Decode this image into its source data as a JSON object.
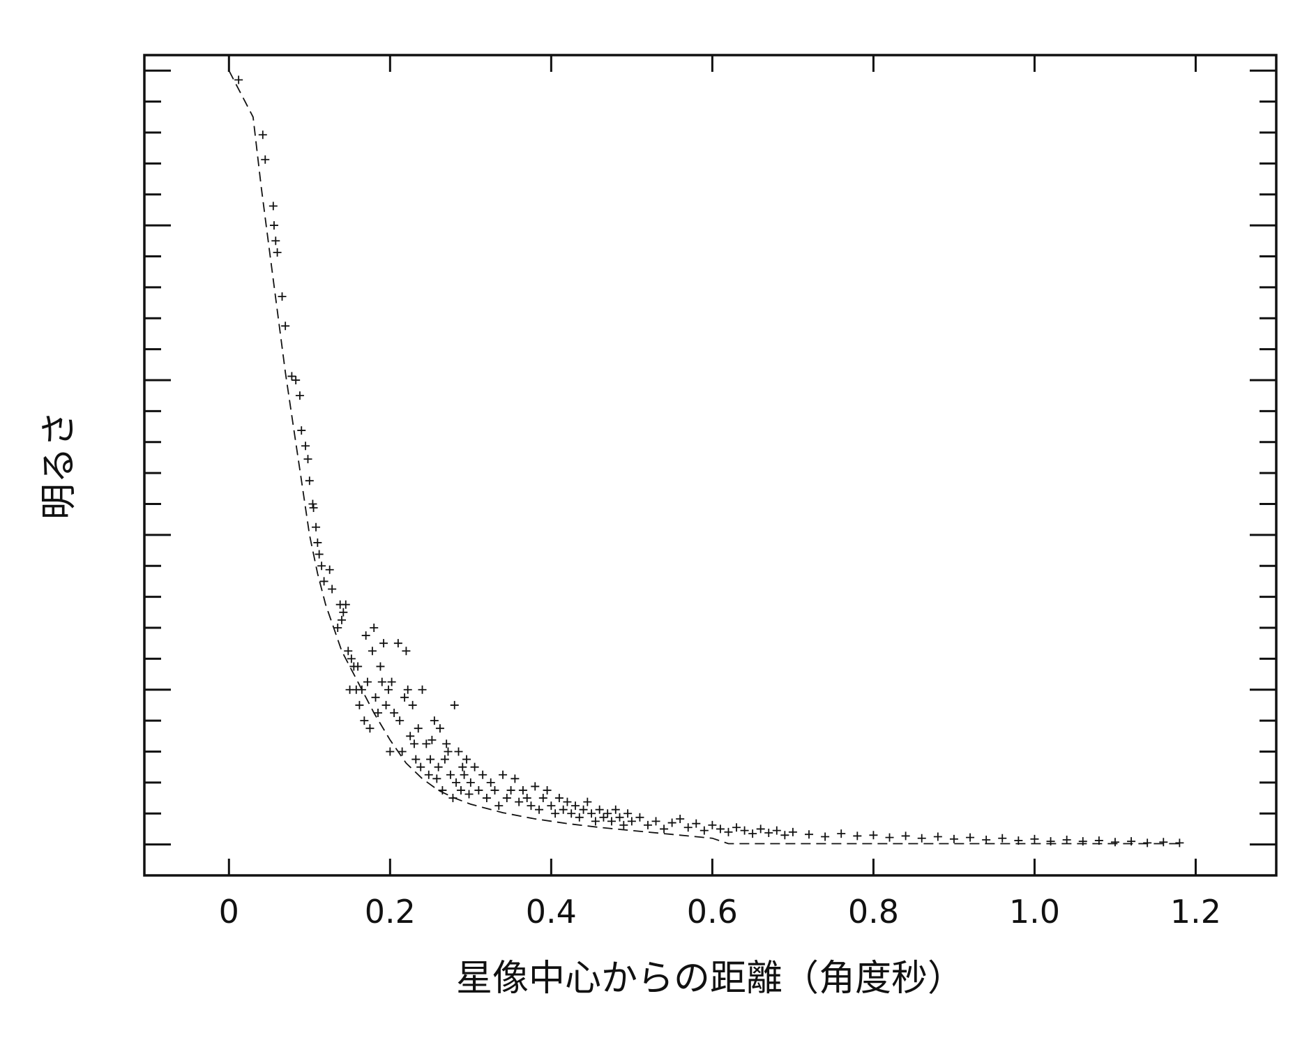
{
  "chart_data": {
    "type": "scatter",
    "title": "",
    "xlabel": "星像中心からの距離（角度秒）",
    "ylabel": "明るさ",
    "xlim": [
      -0.105,
      1.3
    ],
    "ylim": [
      -0.04,
      1.02
    ],
    "x_ticks": [
      0,
      0.2,
      0.4,
      0.6,
      0.8,
      1.0,
      1.2
    ],
    "x_tick_labels": [
      "0",
      "0.2",
      "0.4",
      "0.6",
      "0.8",
      "1.0",
      "1.2"
    ],
    "y_major_ticks": [
      0,
      0.2,
      0.4,
      0.6,
      0.8,
      1.0
    ],
    "y_tick_labels_shown": false,
    "grid": false,
    "colors": {
      "foreground": "#111111",
      "background": "#ffffff"
    },
    "series": [
      {
        "style": "dashed-line",
        "x": [
          0.0,
          0.01,
          0.02,
          0.03,
          0.04,
          0.05,
          0.06,
          0.07,
          0.08,
          0.09,
          0.1,
          0.11,
          0.12,
          0.13,
          0.14,
          0.16,
          0.18,
          0.2,
          0.22,
          0.24,
          0.26,
          0.28,
          0.3,
          0.34,
          0.38,
          0.42,
          0.46,
          0.5,
          0.55,
          0.6,
          0.62,
          0.7,
          0.8,
          0.9,
          1.0,
          1.1,
          1.18
        ],
        "y": [
          1.0,
          0.98,
          0.96,
          0.94,
          0.85,
          0.77,
          0.69,
          0.61,
          0.54,
          0.47,
          0.4,
          0.35,
          0.31,
          0.28,
          0.25,
          0.21,
          0.17,
          0.135,
          0.105,
          0.085,
          0.07,
          0.06,
          0.052,
          0.041,
          0.033,
          0.027,
          0.022,
          0.018,
          0.013,
          0.008,
          0.001,
          0.001,
          0.001,
          0.001,
          0.001,
          0.001,
          0.001
        ]
      },
      {
        "style": "plus-markers",
        "x": [
          0.012,
          0.042,
          0.045,
          0.055,
          0.056,
          0.058,
          0.06,
          0.066,
          0.07,
          0.078,
          0.083,
          0.088,
          0.09,
          0.095,
          0.098,
          0.1,
          0.104,
          0.105,
          0.108,
          0.11,
          0.112,
          0.115,
          0.118,
          0.125,
          0.128,
          0.135,
          0.138,
          0.14,
          0.142,
          0.145,
          0.148,
          0.15,
          0.152,
          0.155,
          0.158,
          0.16,
          0.162,
          0.165,
          0.168,
          0.17,
          0.172,
          0.175,
          0.178,
          0.18,
          0.182,
          0.185,
          0.188,
          0.19,
          0.192,
          0.195,
          0.198,
          0.2,
          0.202,
          0.205,
          0.21,
          0.212,
          0.215,
          0.218,
          0.22,
          0.222,
          0.225,
          0.228,
          0.23,
          0.232,
          0.235,
          0.238,
          0.24,
          0.245,
          0.248,
          0.25,
          0.252,
          0.255,
          0.258,
          0.26,
          0.262,
          0.265,
          0.268,
          0.27,
          0.272,
          0.275,
          0.278,
          0.28,
          0.282,
          0.285,
          0.288,
          0.29,
          0.292,
          0.295,
          0.298,
          0.3,
          0.305,
          0.31,
          0.315,
          0.32,
          0.325,
          0.33,
          0.335,
          0.34,
          0.345,
          0.35,
          0.355,
          0.36,
          0.365,
          0.37,
          0.375,
          0.38,
          0.385,
          0.39,
          0.395,
          0.4,
          0.405,
          0.41,
          0.415,
          0.42,
          0.425,
          0.43,
          0.435,
          0.44,
          0.445,
          0.45,
          0.455,
          0.46,
          0.465,
          0.47,
          0.475,
          0.48,
          0.485,
          0.49,
          0.495,
          0.5,
          0.51,
          0.52,
          0.53,
          0.54,
          0.55,
          0.56,
          0.57,
          0.58,
          0.59,
          0.6,
          0.61,
          0.62,
          0.63,
          0.64,
          0.65,
          0.66,
          0.67,
          0.68,
          0.69,
          0.7,
          0.72,
          0.74,
          0.76,
          0.78,
          0.8,
          0.82,
          0.84,
          0.86,
          0.88,
          0.9,
          0.92,
          0.94,
          0.96,
          0.98,
          1.0,
          1.02,
          1.04,
          1.06,
          1.08,
          1.1,
          1.12,
          1.14,
          1.16,
          1.18
        ],
        "y": [
          0.988,
          0.917,
          0.885,
          0.825,
          0.8,
          0.78,
          0.765,
          0.708,
          0.67,
          0.605,
          0.6,
          0.58,
          0.535,
          0.515,
          0.498,
          0.47,
          0.44,
          0.435,
          0.41,
          0.39,
          0.375,
          0.36,
          0.34,
          0.355,
          0.33,
          0.28,
          0.31,
          0.29,
          0.3,
          0.31,
          0.25,
          0.2,
          0.24,
          0.23,
          0.2,
          0.23,
          0.18,
          0.2,
          0.16,
          0.27,
          0.21,
          0.15,
          0.25,
          0.28,
          0.19,
          0.17,
          0.23,
          0.21,
          0.26,
          0.18,
          0.2,
          0.12,
          0.21,
          0.17,
          0.26,
          0.16,
          0.12,
          0.19,
          0.25,
          0.2,
          0.14,
          0.18,
          0.13,
          0.11,
          0.15,
          0.1,
          0.2,
          0.13,
          0.09,
          0.11,
          0.135,
          0.16,
          0.085,
          0.1,
          0.15,
          0.07,
          0.11,
          0.13,
          0.12,
          0.09,
          0.06,
          0.18,
          0.08,
          0.12,
          0.07,
          0.1,
          0.09,
          0.11,
          0.065,
          0.08,
          0.1,
          0.07,
          0.09,
          0.06,
          0.08,
          0.07,
          0.05,
          0.09,
          0.06,
          0.07,
          0.085,
          0.055,
          0.07,
          0.06,
          0.05,
          0.075,
          0.045,
          0.06,
          0.07,
          0.05,
          0.04,
          0.06,
          0.045,
          0.055,
          0.04,
          0.05,
          0.035,
          0.045,
          0.055,
          0.04,
          0.03,
          0.045,
          0.035,
          0.04,
          0.03,
          0.045,
          0.035,
          0.025,
          0.04,
          0.03,
          0.035,
          0.025,
          0.03,
          0.02,
          0.028,
          0.033,
          0.022,
          0.027,
          0.018,
          0.025,
          0.02,
          0.016,
          0.022,
          0.018,
          0.014,
          0.02,
          0.015,
          0.018,
          0.012,
          0.016,
          0.013,
          0.01,
          0.014,
          0.011,
          0.012,
          0.009,
          0.011,
          0.008,
          0.01,
          0.007,
          0.009,
          0.006,
          0.008,
          0.005,
          0.007,
          0.004,
          0.006,
          0.004,
          0.005,
          0.003,
          0.004,
          0.002,
          0.003,
          0.002
        ]
      }
    ]
  }
}
